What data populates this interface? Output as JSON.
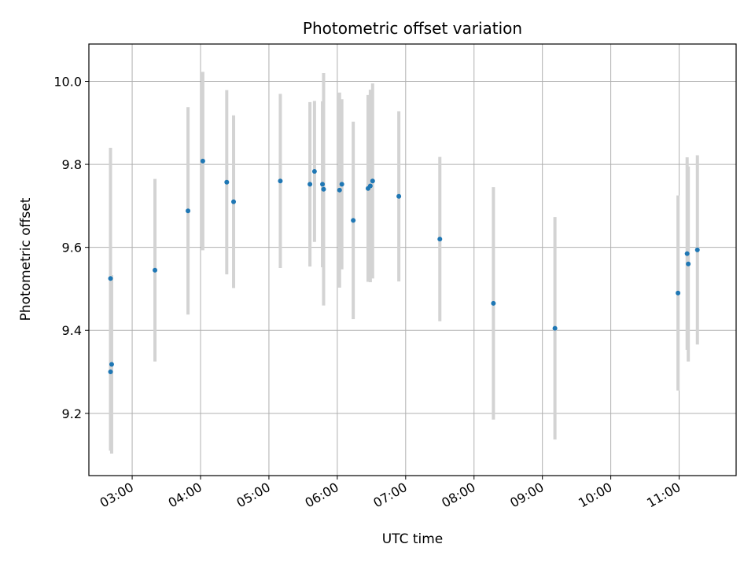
{
  "chart_data": {
    "type": "scatter",
    "title": "Photometric offset variation",
    "xlabel": "UTC time",
    "ylabel": "Photometric offset",
    "x_tick_labels": [
      "03:00",
      "04:00",
      "05:00",
      "06:00",
      "07:00",
      "08:00",
      "09:00",
      "10:00",
      "11:00"
    ],
    "x_ticks": [
      "03:00",
      "04:00",
      "05:00",
      "06:00",
      "07:00",
      "08:00",
      "09:00",
      "10:00",
      "11:00"
    ],
    "y_ticks": [
      9.2,
      9.4,
      9.6,
      9.8,
      10.0
    ],
    "y_tick_labels": [
      "9.2",
      "9.4",
      "9.6",
      "9.8",
      "10.0"
    ],
    "xlim": [
      "02:22",
      "11:50"
    ],
    "ylim": [
      9.05,
      10.09
    ],
    "grid": true,
    "marker_color": "#1f77b4",
    "errorbar_color": "#d3d3d3",
    "points": [
      {
        "t": "02:41",
        "y": 9.525,
        "err": 0.315
      },
      {
        "t": "02:41",
        "y": 9.3,
        "err": 0.19
      },
      {
        "t": "02:42",
        "y": 9.318,
        "err": 0.215
      },
      {
        "t": "03:20",
        "y": 9.545,
        "err": 0.22
      },
      {
        "t": "03:49",
        "y": 9.688,
        "err": 0.25
      },
      {
        "t": "04:02",
        "y": 9.808,
        "err": 0.215
      },
      {
        "t": "04:23",
        "y": 9.757,
        "err": 0.222
      },
      {
        "t": "04:29",
        "y": 9.71,
        "err": 0.208
      },
      {
        "t": "05:10",
        "y": 9.76,
        "err": 0.21
      },
      {
        "t": "05:36",
        "y": 9.752,
        "err": 0.198
      },
      {
        "t": "05:40",
        "y": 9.783,
        "err": 0.17
      },
      {
        "t": "05:47",
        "y": 9.752,
        "err": 0.2
      },
      {
        "t": "05:48",
        "y": 9.74,
        "err": 0.28
      },
      {
        "t": "06:02",
        "y": 9.738,
        "err": 0.235
      },
      {
        "t": "06:04",
        "y": 9.752,
        "err": 0.205
      },
      {
        "t": "06:14",
        "y": 9.665,
        "err": 0.238
      },
      {
        "t": "06:27",
        "y": 9.742,
        "err": 0.225
      },
      {
        "t": "06:29",
        "y": 9.748,
        "err": 0.232
      },
      {
        "t": "06:31",
        "y": 9.76,
        "err": 0.235
      },
      {
        "t": "06:54",
        "y": 9.723,
        "err": 0.205
      },
      {
        "t": "07:30",
        "y": 9.62,
        "err": 0.198
      },
      {
        "t": "08:17",
        "y": 9.465,
        "err": 0.28
      },
      {
        "t": "09:11",
        "y": 9.405,
        "err": 0.268
      },
      {
        "t": "10:59",
        "y": 9.49,
        "err": 0.235
      },
      {
        "t": "11:07",
        "y": 9.585,
        "err": 0.232
      },
      {
        "t": "11:08",
        "y": 9.56,
        "err": 0.235
      },
      {
        "t": "11:16",
        "y": 9.594,
        "err": 0.228
      }
    ]
  }
}
